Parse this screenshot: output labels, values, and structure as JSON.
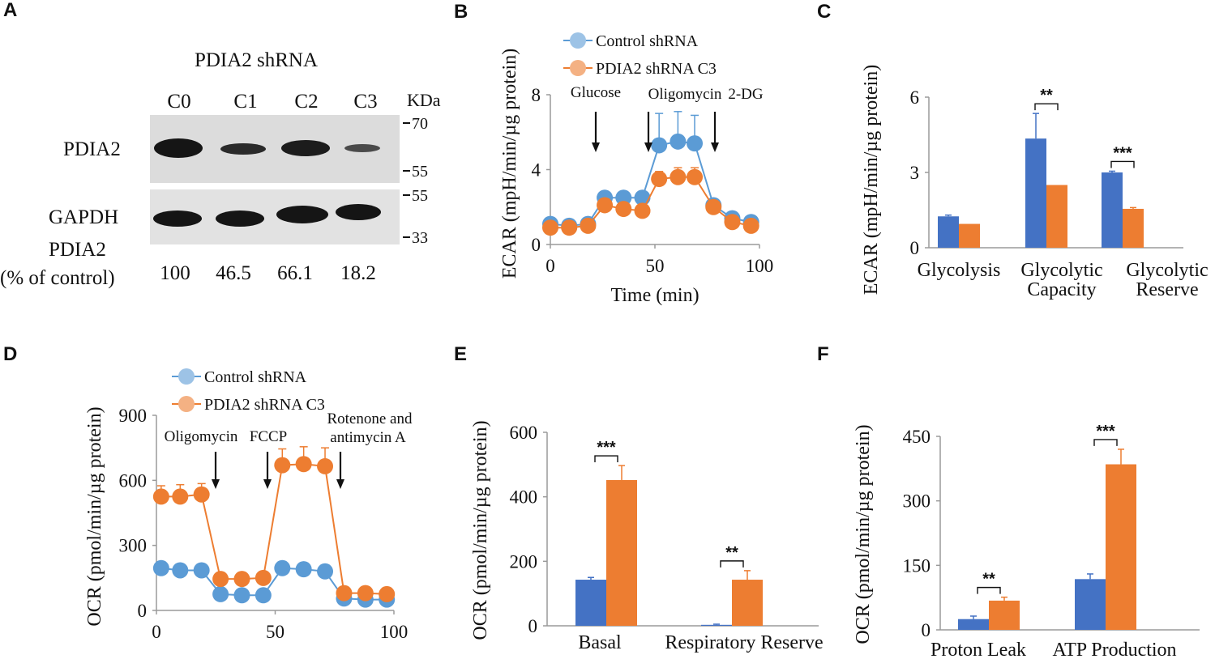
{
  "colors": {
    "blue_marker": "#5b9bd5",
    "blue_bar": "#4472c4",
    "orange": "#ed7d31",
    "blue_light_marker": "#9dc3e6",
    "orange_light_marker": "#f4b183"
  },
  "panel_a": {
    "letter": "A",
    "title": "PDIA2 shRNA",
    "lanes": [
      "C0",
      "C1",
      "C2",
      "C3"
    ],
    "kda_label": "KDa",
    "markers_top": [
      "70",
      "55"
    ],
    "markers_bottom": [
      "55",
      "33"
    ],
    "row_labels": [
      "PDIA2",
      "GAPDH"
    ],
    "quant_label_1": "PDIA2",
    "quant_label_2": "(% of control)",
    "quant_values": [
      "100",
      "46.5",
      "66.1",
      "18.2"
    ]
  },
  "chart_data": [
    {
      "panel": "B",
      "type": "line",
      "ylabel": "ECAR (mpH/min/µg protein)",
      "xlabel": "Time (min)",
      "xlim": [
        0,
        100
      ],
      "ylim": [
        0,
        8
      ],
      "xticks": [
        "0",
        "50",
        "100"
      ],
      "yticks": [
        "0",
        "4",
        "8"
      ],
      "annotations": [
        "Glucose",
        "Oligomycin",
        "2-DG"
      ],
      "x": [
        0,
        9,
        18,
        26,
        35,
        44,
        52,
        61,
        69,
        78,
        87,
        96
      ],
      "series": [
        {
          "name": "Control shRNA",
          "values": [
            1.1,
            1.0,
            1.1,
            2.5,
            2.5,
            2.5,
            5.3,
            5.5,
            5.4,
            2.1,
            1.4,
            1.2
          ],
          "err": [
            0.2,
            0.2,
            0.2,
            0.3,
            0.3,
            0.3,
            1.7,
            1.6,
            1.5,
            0.2,
            0.2,
            0.2
          ]
        },
        {
          "name": "PDIA2 shRNA C3",
          "values": [
            0.9,
            0.9,
            1.0,
            2.1,
            1.9,
            1.8,
            3.5,
            3.6,
            3.6,
            2.0,
            1.2,
            1.0
          ],
          "err": [
            0.2,
            0.2,
            0.2,
            0.3,
            0.3,
            0.3,
            0.4,
            0.5,
            0.5,
            0.2,
            0.2,
            0.2
          ]
        }
      ]
    },
    {
      "panel": "C",
      "type": "bar",
      "ylabel": "ECAR (mpH/min/µg protein)",
      "ylim": [
        0,
        6
      ],
      "yticks": [
        "0",
        "3",
        "6"
      ],
      "categories": [
        "Glycolysis",
        "Glycolytic\nCapacity",
        "Glycolytic\nReserve"
      ],
      "series": [
        {
          "name": "Control shRNA",
          "values": [
            1.25,
            4.35,
            3.0
          ],
          "err": [
            0.05,
            1.0,
            0.05
          ]
        },
        {
          "name": "PDIA2 shRNA C3",
          "values": [
            0.95,
            2.5,
            1.55
          ],
          "err": [
            0.0,
            0.0,
            0.05
          ]
        }
      ],
      "significance": [
        "",
        "**",
        "***"
      ]
    },
    {
      "panel": "D",
      "type": "line",
      "ylabel": "OCR (pmol/min/µg protein)",
      "xlim": [
        0,
        100
      ],
      "ylim": [
        0,
        900
      ],
      "xticks": [
        "0",
        "50",
        "100"
      ],
      "yticks": [
        "0",
        "300",
        "600",
        "900"
      ],
      "annotations": [
        "Oligomycin",
        "FCCP",
        "Rotenone and",
        "antimycin A"
      ],
      "x": [
        2,
        10,
        19,
        27,
        36,
        45,
        53,
        62,
        71,
        79,
        88,
        97
      ],
      "series": [
        {
          "name": "Control shRNA",
          "values": [
            195,
            185,
            185,
            75,
            70,
            70,
            195,
            190,
            180,
            55,
            50,
            50
          ],
          "err": [
            10,
            10,
            10,
            8,
            8,
            8,
            10,
            10,
            10,
            8,
            8,
            8
          ]
        },
        {
          "name": "PDIA2 shRNA C3",
          "values": [
            525,
            525,
            535,
            145,
            145,
            150,
            670,
            675,
            665,
            80,
            80,
            75
          ],
          "err": [
            50,
            55,
            50,
            15,
            15,
            15,
            75,
            80,
            85,
            15,
            15,
            15
          ]
        }
      ]
    },
    {
      "panel": "E",
      "type": "bar",
      "ylabel": "OCR (pmol/min/µg protein)",
      "ylim": [
        0,
        600
      ],
      "yticks": [
        "0",
        "200",
        "400",
        "600"
      ],
      "categories": [
        "Basal",
        "Respiratory Reserve"
      ],
      "series": [
        {
          "name": "Control shRNA",
          "values": [
            143,
            3
          ],
          "err": [
            7,
            2
          ]
        },
        {
          "name": "PDIA2 shRNA C3",
          "values": [
            452,
            143
          ],
          "err": [
            45,
            28
          ]
        }
      ],
      "significance": [
        "***",
        "**"
      ]
    },
    {
      "panel": "F",
      "type": "bar",
      "ylabel": "OCR (pmol/min/µg protein)",
      "ylim": [
        0,
        450
      ],
      "yticks": [
        "0",
        "150",
        "300",
        "450"
      ],
      "categories": [
        "Proton Leak",
        "ATP Production"
      ],
      "series": [
        {
          "name": "Control shRNA",
          "values": [
            25,
            118
          ],
          "err": [
            7,
            12
          ]
        },
        {
          "name": "PDIA2 shRNA C3",
          "values": [
            68,
            385
          ],
          "err": [
            8,
            35
          ]
        }
      ],
      "significance": [
        "**",
        "***"
      ]
    }
  ]
}
